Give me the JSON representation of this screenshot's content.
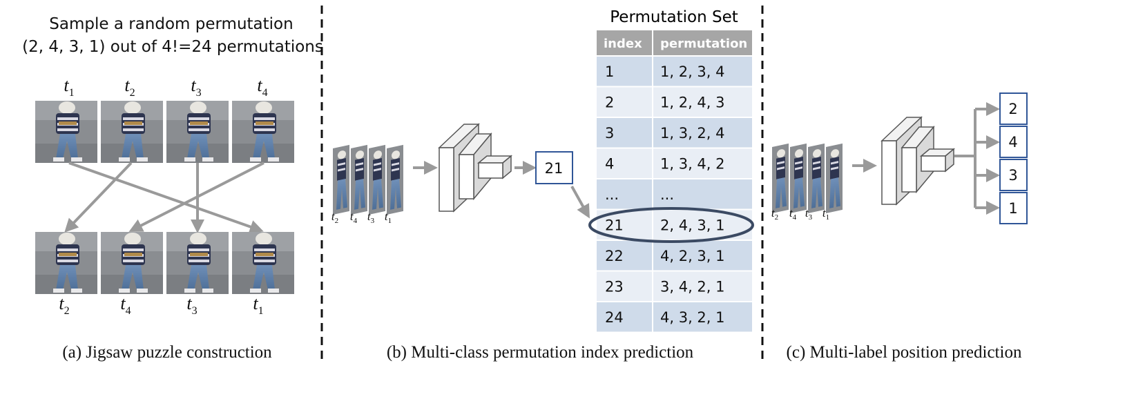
{
  "panel_a": {
    "intro_line1": "Sample a random permutation",
    "intro_line2": "(2, 4, 3, 1) out of 4!=24 permutations",
    "top_labels": [
      {
        "base": "t",
        "sub": "1"
      },
      {
        "base": "t",
        "sub": "2"
      },
      {
        "base": "t",
        "sub": "3"
      },
      {
        "base": "t",
        "sub": "4"
      }
    ],
    "bottom_labels": [
      {
        "base": "t",
        "sub": "2"
      },
      {
        "base": "t",
        "sub": "4"
      },
      {
        "base": "t",
        "sub": "3"
      },
      {
        "base": "t",
        "sub": "1"
      }
    ],
    "caption": "(a) Jigsaw puzzle construction"
  },
  "panel_b": {
    "stack_labels": [
      {
        "base": "t",
        "sub": "2"
      },
      {
        "base": "t",
        "sub": "4"
      },
      {
        "base": "t",
        "sub": "3"
      },
      {
        "base": "t",
        "sub": "1"
      }
    ],
    "output_box": "21",
    "table_title": "Permutation Set",
    "table_headers": [
      "index",
      "permutation"
    ],
    "table_rows": [
      [
        "1",
        "1, 2, 3, 4"
      ],
      [
        "2",
        "1, 2, 4, 3"
      ],
      [
        "3",
        "1, 3, 2, 4"
      ],
      [
        "4",
        "1, 3, 4, 2"
      ],
      [
        "...",
        "..."
      ],
      [
        "21",
        "2, 4, 3, 1"
      ],
      [
        "22",
        "4, 2, 3, 1"
      ],
      [
        "23",
        "3, 4, 2, 1"
      ],
      [
        "24",
        "4, 3, 2, 1"
      ]
    ],
    "highlighted_row_index": 5,
    "caption": "(b) Multi-class permutation index prediction"
  },
  "panel_c": {
    "stack_labels": [
      {
        "base": "t",
        "sub": "2"
      },
      {
        "base": "t",
        "sub": "4"
      },
      {
        "base": "t",
        "sub": "3"
      },
      {
        "base": "t",
        "sub": "1"
      }
    ],
    "output_boxes": [
      "2",
      "4",
      "3",
      "1"
    ],
    "caption": "(c) Multi-label position prediction"
  },
  "colors": {
    "arrow": "#9a9a9a",
    "header_bg": "#a6a6a6",
    "row_dark": "#cfdbea",
    "row_light": "#e9eef5",
    "box_border": "#2f5597",
    "ellipse": "#3b4a63",
    "divider": "#111111"
  }
}
